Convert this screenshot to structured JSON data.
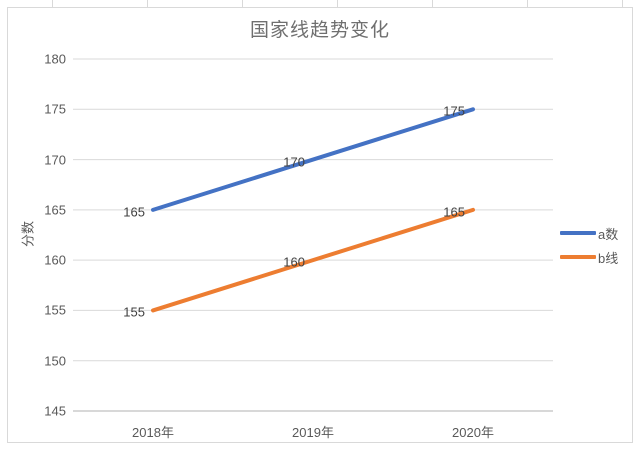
{
  "chart_data": {
    "type": "line",
    "title": "国家线趋势变化",
    "categories": [
      "2018年",
      "2019年",
      "2020年"
    ],
    "series": [
      {
        "name": "a数",
        "color": "#4472C4",
        "values": [
          165,
          170,
          175
        ]
      },
      {
        "name": "b线",
        "color": "#ED7D31",
        "values": [
          155,
          160,
          165
        ]
      }
    ],
    "xlabel": "",
    "ylabel": "分数",
    "ylim": [
      145,
      180
    ],
    "ytick_step": 5,
    "grid": true,
    "data_labels": true,
    "legend_position": "right",
    "colors": {
      "gridline": "#d9d9d9",
      "axis_line": "#c0c0c0",
      "title_text": "#6f6f6f",
      "tick_text": "#595959",
      "data_label_text": "#404040",
      "chart_border": "#d9d9d9"
    }
  }
}
